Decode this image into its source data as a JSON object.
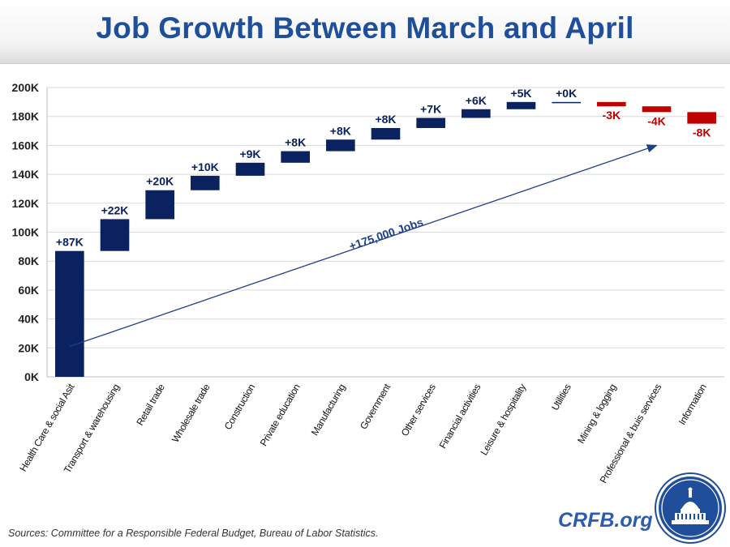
{
  "title": "Job Growth Between March and April",
  "source": "Sources: Committee for a Responsible Federal Budget, Bureau of Labor Statistics.",
  "brand": "CRFB.org",
  "seal": {
    "top_text": "",
    "label": ""
  },
  "colors": {
    "positive": "#0b2260",
    "negative": "#c00000",
    "title": "#1f4e9a",
    "positive_label": "#0b2260",
    "negative_label": "#c00000"
  },
  "chart_data": {
    "type": "waterfall",
    "title": "Job Growth Between March and April",
    "xlabel": "",
    "ylabel": "",
    "ylim": [
      0,
      200
    ],
    "yticks": [
      0,
      20,
      40,
      60,
      80,
      100,
      120,
      140,
      160,
      180,
      200
    ],
    "ytick_labels": [
      "0K",
      "20K",
      "40K",
      "60K",
      "80K",
      "100K",
      "120K",
      "140K",
      "160K",
      "180K",
      "200K"
    ],
    "categories": [
      "Health Care & social Asit",
      "Transport & warehousing",
      "Retail trade",
      "Wholesale trade",
      "Construction",
      "Private education",
      "Manufacturing",
      "Government",
      "Other services",
      "Financial activities",
      "Leisure & hospitality",
      "Utilities",
      "Mining & logging",
      "Professional & buis services",
      "Information"
    ],
    "values": [
      87,
      22,
      20,
      10,
      9,
      8,
      8,
      8,
      7,
      6,
      5,
      0,
      -3,
      -4,
      -8
    ],
    "labels": [
      "+87K",
      "+22K",
      "+20K",
      "+10K",
      "+9K",
      "+8K",
      "+8K",
      "+8K",
      "+7K",
      "+6K",
      "+5K",
      "+0K",
      "-3K",
      "-4K",
      "-8K"
    ],
    "grid": true,
    "annotation": {
      "text": "+175,000 Jobs",
      "from": {
        "category_index": 0.5,
        "value": 21
      },
      "to": {
        "category_index": 13.5,
        "value": 160
      }
    }
  }
}
